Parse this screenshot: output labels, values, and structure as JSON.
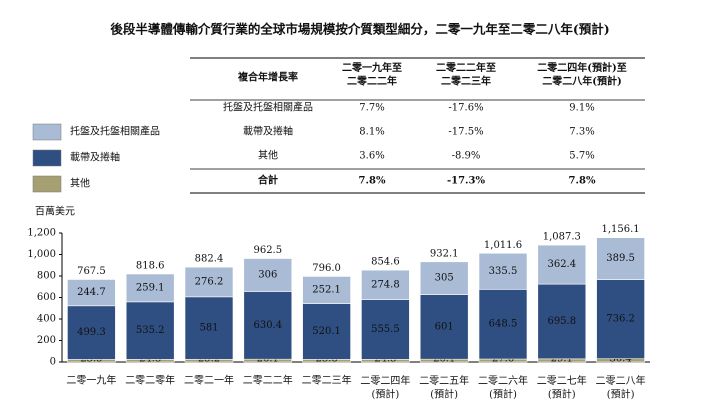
{
  "chart_data": {
    "type": "stacked-bar",
    "title": "後段半導體傳輸介質行業的全球市場規模按介質類型細分，二零一九年至二零二八年(預計)",
    "y_label": "百萬美元",
    "categories": [
      "二零一九年",
      "二零二零年",
      "二零二一年",
      "二零二二年",
      "二零二三年",
      "二零二四年\n(預計)",
      "二零二五年\n(預計)",
      "二零二六年\n(預計)",
      "二零二七年\n(預計)",
      "二零二八年\n(預計)"
    ],
    "series": [
      {
        "name": "其他",
        "color": "#a59f72",
        "values": [
          23.5,
          24.3,
          25.2,
          26.1,
          23.8,
          24.3,
          26.1,
          27.6,
          29.1,
          30.4
        ]
      },
      {
        "name": "載帶及捲軸",
        "color": "#2f4f82",
        "values": [
          499.3,
          535.2,
          581.0,
          630.4,
          520.1,
          555.5,
          601.0,
          648.5,
          695.8,
          736.2
        ]
      },
      {
        "name": "托盤及托盤相關產品",
        "color": "#a9bbd5",
        "values": [
          244.7,
          259.1,
          276.2,
          306.0,
          252.1,
          274.8,
          305.0,
          335.5,
          362.4,
          389.5
        ]
      }
    ],
    "totals": {
      "values": [
        767.5,
        818.6,
        882.4,
        962.5,
        796.0,
        854.6,
        932.1,
        1011.6,
        1087.3,
        1156.1
      ],
      "value_labels": [
        "767.5",
        "818.6",
        "882.4",
        "962.5",
        "796.0",
        "854.6",
        "932.1",
        "1,011.6",
        "1,087.3",
        "1,156.1"
      ]
    },
    "ylim": [
      0,
      1200
    ],
    "yticks": [
      0,
      200,
      400,
      600,
      800,
      {
        "value": 1000,
        "label": "1,000"
      },
      {
        "value": 1200,
        "label": "1,200"
      }
    ]
  },
  "table": {
    "header": [
      "複合年增長率",
      "二零一九年至\n二零二二年",
      "二零二二年至\n二零二三年",
      "二零二四年(預計)至\n二零二八年(預計)"
    ],
    "rows": [
      [
        "托盤及托盤相關產品",
        "7.7%",
        "-17.6%",
        "9.1%"
      ],
      [
        "載帶及捲軸",
        "8.1%",
        "-17.5%",
        "7.3%"
      ],
      [
        "其他",
        "3.6%",
        "-8.9%",
        "5.7%"
      ],
      [
        "合計",
        "7.8%",
        "-17.3%",
        "7.8%"
      ]
    ]
  }
}
